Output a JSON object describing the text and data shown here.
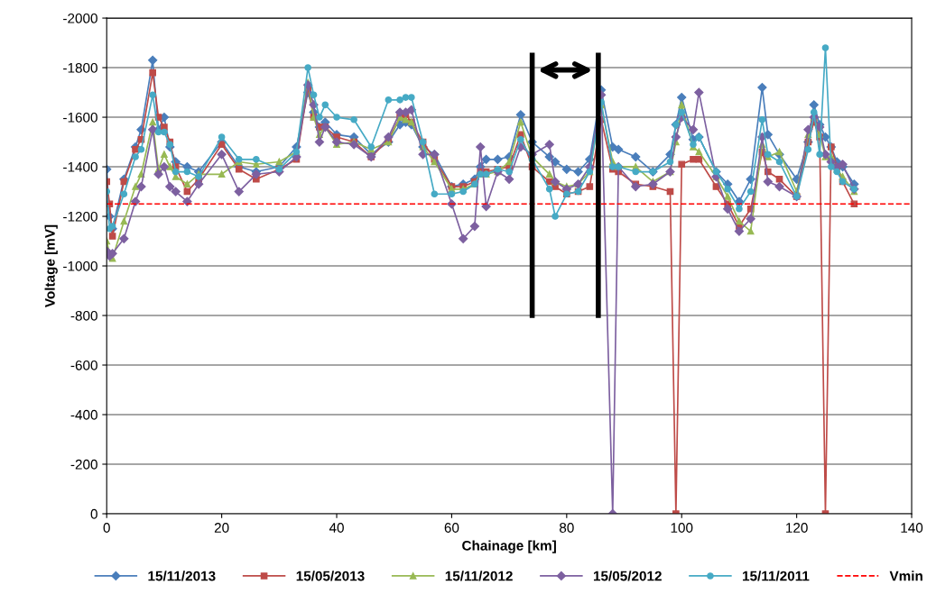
{
  "chart_data": {
    "type": "line",
    "xlabel": "Chainage [km]",
    "ylabel": "Voltage [mV]",
    "x": [
      0,
      0.5,
      1,
      3,
      5,
      6,
      8,
      9,
      10,
      11,
      12,
      14,
      16,
      20,
      23,
      26,
      30,
      33,
      35,
      36,
      37,
      38,
      40,
      43,
      46,
      49,
      51,
      52,
      53,
      55,
      57,
      60,
      62,
      64,
      65,
      66,
      68,
      70,
      72,
      74,
      77,
      78,
      80,
      82,
      84,
      86,
      88,
      89,
      92,
      95,
      98,
      99,
      100,
      102,
      103,
      106,
      108,
      110,
      112,
      114,
      115,
      117,
      120,
      122,
      123,
      124,
      125,
      126,
      127,
      128,
      130
    ],
    "xlim": [
      0,
      140
    ],
    "xticks": [
      0,
      20,
      40,
      60,
      80,
      100,
      120,
      140
    ],
    "ylim": [
      0,
      -2000
    ],
    "yticks": [
      0,
      -200,
      -400,
      -600,
      -800,
      -1000,
      -1200,
      -1400,
      -1600,
      -1800,
      -2000
    ],
    "grid": "y",
    "legend": "bottom",
    "series": [
      {
        "name": "15/11/2013",
        "color": "#4a7ebb",
        "marker": "diamond",
        "values": [
          -1390,
          -1200,
          -1150,
          -1350,
          -1480,
          -1550,
          -1830,
          -1550,
          -1600,
          -1480,
          -1420,
          -1400,
          -1380,
          -1500,
          -1400,
          -1380,
          -1400,
          -1480,
          -1700,
          -1620,
          -1560,
          -1580,
          -1530,
          -1520,
          -1450,
          -1500,
          -1570,
          -1580,
          -1570,
          -1480,
          -1450,
          -1320,
          -1330,
          -1350,
          -1400,
          -1430,
          -1430,
          -1440,
          -1610,
          -1500,
          -1440,
          -1420,
          -1390,
          -1380,
          -1430,
          -1710,
          -1480,
          -1470,
          -1440,
          -1380,
          -1450,
          -1570,
          -1680,
          -1510,
          -1520,
          -1380,
          -1330,
          -1260,
          -1350,
          -1720,
          -1530,
          -1450,
          -1350,
          -1500,
          -1650,
          -1570,
          -1520,
          -1480,
          -1420,
          -1400,
          -1330
        ]
      },
      {
        "name": "15/05/2013",
        "color": "#be4b48",
        "marker": "square",
        "values": [
          -1340,
          -1250,
          -1120,
          -1340,
          -1470,
          -1510,
          -1780,
          -1600,
          -1560,
          -1500,
          -1400,
          -1300,
          -1350,
          -1490,
          -1390,
          -1350,
          -1390,
          -1430,
          -1720,
          -1600,
          -1560,
          -1560,
          -1520,
          -1500,
          -1440,
          -1510,
          -1600,
          -1610,
          -1580,
          -1500,
          -1430,
          -1320,
          -1320,
          -1340,
          -1380,
          -1380,
          -1390,
          -1400,
          -1530,
          -1400,
          -1340,
          -1320,
          -1290,
          -1300,
          -1320,
          -1590,
          -1390,
          -1380,
          -1330,
          -1320,
          -1300,
          0,
          -1410,
          -1430,
          -1430,
          -1320,
          -1250,
          -1160,
          -1230,
          -1460,
          -1380,
          -1350,
          -1280,
          -1500,
          -1580,
          -1520,
          0,
          -1480,
          -1400,
          -1340,
          -1250
        ]
      },
      {
        "name": "15/11/2012",
        "color": "#98b954",
        "marker": "triangle",
        "values": [
          -1100,
          -1050,
          -1030,
          -1180,
          -1320,
          -1370,
          -1580,
          -1390,
          -1450,
          -1400,
          -1360,
          -1330,
          -1370,
          -1370,
          -1420,
          -1410,
          -1420,
          -1460,
          -1740,
          -1600,
          -1530,
          -1560,
          -1490,
          -1500,
          -1470,
          -1500,
          -1600,
          -1590,
          -1580,
          -1480,
          -1420,
          -1310,
          -1310,
          -1330,
          -1370,
          -1370,
          -1380,
          -1420,
          -1580,
          -1440,
          -1370,
          -1340,
          -1320,
          -1330,
          -1380,
          -1650,
          -1420,
          -1400,
          -1400,
          -1340,
          -1380,
          -1500,
          -1650,
          -1480,
          -1460,
          -1360,
          -1280,
          -1180,
          -1140,
          -1490,
          -1440,
          -1460,
          -1300,
          -1530,
          -1600,
          -1530,
          -1440,
          -1440,
          -1390,
          -1360,
          -1300
        ]
      },
      {
        "name": "15/05/2012",
        "color": "#7d60a0",
        "marker": "diamond",
        "values": [
          -1060,
          -1040,
          -1050,
          -1110,
          -1260,
          -1320,
          -1550,
          -1370,
          -1400,
          -1320,
          -1300,
          -1260,
          -1330,
          -1450,
          -1300,
          -1370,
          -1380,
          -1440,
          -1730,
          -1650,
          -1500,
          -1560,
          -1500,
          -1490,
          -1440,
          -1520,
          -1620,
          -1620,
          -1630,
          -1450,
          -1450,
          -1250,
          -1110,
          -1160,
          -1480,
          -1240,
          -1380,
          -1350,
          -1480,
          -1450,
          -1490,
          -1340,
          -1310,
          -1330,
          -1400,
          -1690,
          0,
          -1400,
          -1320,
          -1330,
          -1380,
          -1520,
          -1600,
          -1550,
          -1700,
          -1360,
          -1230,
          -1140,
          -1190,
          -1520,
          -1340,
          -1320,
          -1280,
          -1550,
          -1600,
          -1560,
          -1450,
          -1420,
          -1400,
          -1410,
          -1310
        ]
      },
      {
        "name": "15/11/2011",
        "color": "#46aac5",
        "marker": "circle",
        "values": [
          -1300,
          -1150,
          -1160,
          -1290,
          -1440,
          -1470,
          -1690,
          -1540,
          -1540,
          -1490,
          -1380,
          -1380,
          -1360,
          -1520,
          -1430,
          -1430,
          -1390,
          -1460,
          -1800,
          -1690,
          -1600,
          -1650,
          -1600,
          -1590,
          -1480,
          -1670,
          -1670,
          -1680,
          -1680,
          -1500,
          -1290,
          -1290,
          -1300,
          -1330,
          -1370,
          -1370,
          -1390,
          -1380,
          -1510,
          -1430,
          -1310,
          -1200,
          -1290,
          -1300,
          -1380,
          -1660,
          -1400,
          -1400,
          -1380,
          -1380,
          -1420,
          -1570,
          -1620,
          -1490,
          -1520,
          -1380,
          -1310,
          -1230,
          -1300,
          -1590,
          -1450,
          -1420,
          -1280,
          -1470,
          -1620,
          -1450,
          -1880,
          -1400,
          -1380,
          -1340,
          -1310
        ]
      }
    ],
    "ref_lines": [
      {
        "axis": "y",
        "value": -1250,
        "label": "Vmin",
        "color": "#ff0000",
        "line_style": "dashed"
      }
    ]
  }
}
